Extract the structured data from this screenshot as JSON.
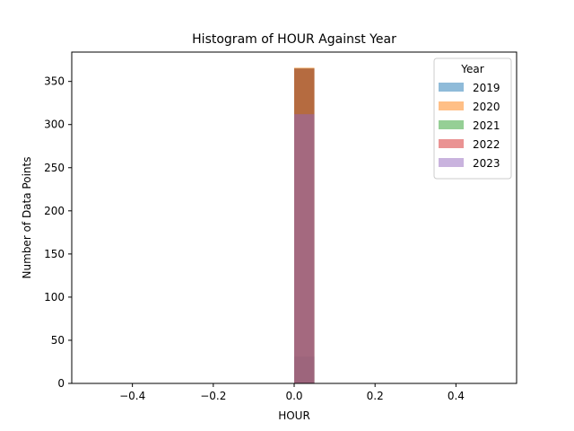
{
  "chart_data": {
    "type": "bar",
    "title": "Histogram of HOUR Against Year",
    "xlabel": "HOUR",
    "ylabel": "Number of Data Points",
    "xlim": [
      -0.55,
      0.55
    ],
    "ylim": [
      0,
      384
    ],
    "x_ticks": [
      -0.4,
      -0.2,
      0.0,
      0.2,
      0.4
    ],
    "x_tick_labels": [
      "−0.4",
      "−0.2",
      "0.0",
      "0.2",
      "0.4"
    ],
    "y_ticks": [
      0,
      50,
      100,
      150,
      200,
      250,
      300,
      350
    ],
    "y_tick_labels": [
      "0",
      "50",
      "100",
      "150",
      "200",
      "250",
      "300",
      "350"
    ],
    "bin": [
      0.0,
      0.05
    ],
    "grid": false,
    "legend_title": "Year",
    "legend_position": "top-right",
    "series": [
      {
        "name": "2019",
        "value": 31,
        "color": "#1f77b4"
      },
      {
        "name": "2020",
        "value": 366,
        "color": "#ff7f0e"
      },
      {
        "name": "2021",
        "value": 365,
        "color": "#2ca02c"
      },
      {
        "name": "2022",
        "value": 365,
        "color": "#d62728"
      },
      {
        "name": "2023",
        "value": 312,
        "color": "#9467bd"
      }
    ],
    "bar_alpha": 0.5
  }
}
